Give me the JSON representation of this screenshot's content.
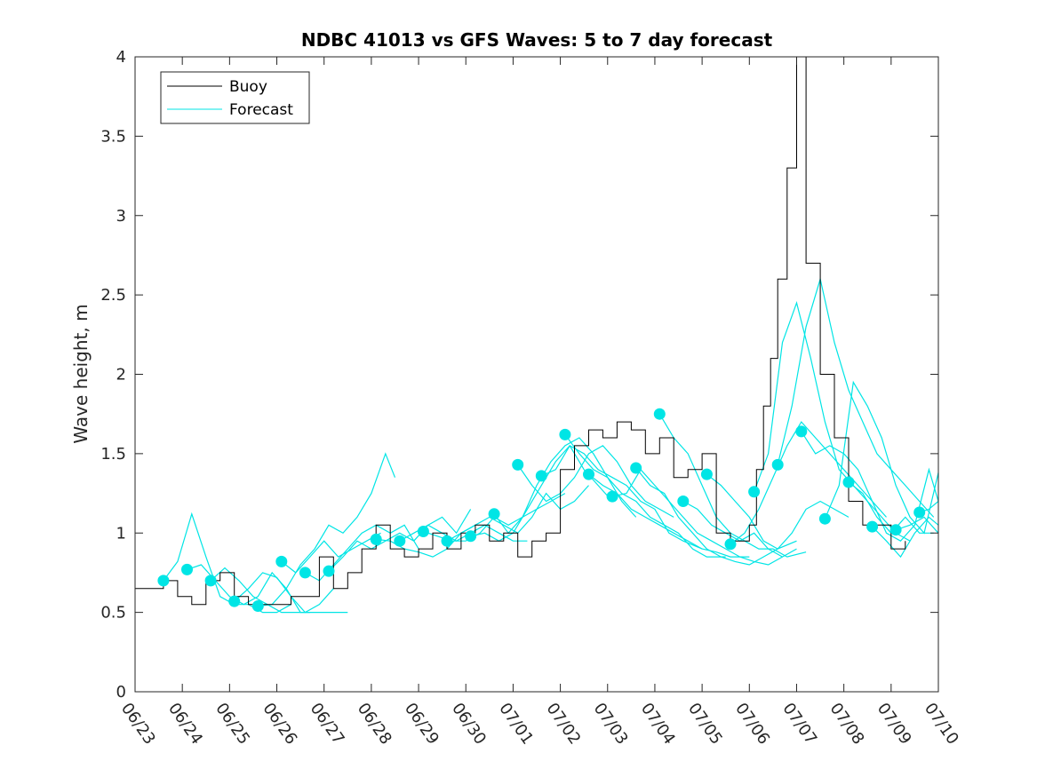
{
  "chart_data": {
    "type": "line",
    "title": "NDBC 41013 vs GFS Waves: 5 to 7 day forecast",
    "xlabel": "",
    "ylabel": "Wave height, m",
    "xlim": [
      0,
      17
    ],
    "ylim": [
      0,
      4
    ],
    "x_ticks": [
      "06/23",
      "06/24",
      "06/25",
      "06/26",
      "06/27",
      "06/28",
      "06/29",
      "06/30",
      "07/01",
      "07/02",
      "07/03",
      "07/04",
      "07/05",
      "07/06",
      "07/07",
      "07/08",
      "07/09",
      "07/10"
    ],
    "y_ticks": [
      "0",
      "0.5",
      "1",
      "1.5",
      "2",
      "2.5",
      "3",
      "3.5",
      "4"
    ],
    "legend": {
      "position": "top-left",
      "entries": [
        "Buoy",
        "Forecast"
      ]
    },
    "colors": {
      "buoy": "#000000",
      "forecast": "#00e5e5"
    },
    "buoy": {
      "name": "Buoy",
      "x": [
        0,
        0.3,
        0.6,
        0.9,
        1.2,
        1.5,
        1.8,
        2.1,
        2.4,
        2.7,
        3.0,
        3.3,
        3.6,
        3.9,
        4.2,
        4.5,
        4.8,
        5.1,
        5.4,
        5.7,
        6.0,
        6.3,
        6.6,
        6.9,
        7.2,
        7.5,
        7.8,
        8.1,
        8.4,
        8.7,
        9.0,
        9.3,
        9.6,
        9.9,
        10.2,
        10.5,
        10.8,
        11.1,
        11.4,
        11.7,
        12.0,
        12.3,
        12.6,
        12.8,
        13.0,
        13.15,
        13.3,
        13.45,
        13.6,
        13.8,
        14.0,
        14.2,
        14.5,
        14.8,
        15.1,
        15.4,
        15.7,
        16.0,
        16.3
      ],
      "y": [
        0.65,
        0.65,
        0.7,
        0.6,
        0.55,
        0.7,
        0.75,
        0.6,
        0.55,
        0.55,
        0.55,
        0.6,
        0.6,
        0.85,
        0.65,
        0.75,
        0.9,
        1.05,
        0.9,
        0.85,
        0.9,
        1.0,
        0.9,
        1.0,
        1.05,
        0.95,
        1.0,
        0.85,
        0.95,
        1.0,
        1.4,
        1.55,
        1.65,
        1.6,
        1.7,
        1.65,
        1.5,
        1.6,
        1.35,
        1.4,
        1.5,
        1.0,
        0.95,
        0.95,
        1.05,
        1.4,
        1.8,
        2.1,
        2.6,
        3.3,
        4.0,
        2.7,
        2.0,
        1.6,
        1.2,
        1.05,
        1.05,
        0.9,
        0.95
      ]
    },
    "forecast": {
      "name": "Forecast",
      "lines": [
        {
          "x": [
            0.6,
            0.9,
            1.2,
            1.5,
            1.8,
            2.1,
            2.4,
            2.7,
            3.0,
            3.3
          ],
          "y": [
            0.7,
            0.82,
            1.12,
            0.85,
            0.6,
            0.55,
            0.55,
            0.5,
            0.5,
            0.55
          ]
        },
        {
          "x": [
            1.1,
            1.4,
            1.7,
            2.0,
            2.3,
            2.6,
            2.9,
            3.2,
            3.5,
            4.0,
            4.5
          ],
          "y": [
            0.77,
            0.8,
            0.7,
            0.6,
            0.55,
            0.6,
            0.75,
            0.65,
            0.5,
            0.5,
            0.5
          ]
        },
        {
          "x": [
            1.6,
            1.9,
            2.2,
            2.5,
            2.8,
            3.1,
            3.4,
            3.7
          ],
          "y": [
            0.7,
            0.78,
            0.7,
            0.6,
            0.55,
            0.5,
            0.5,
            0.5
          ]
        },
        {
          "x": [
            2.1,
            2.4,
            2.7,
            3.0,
            3.3,
            3.6,
            3.9,
            4.2
          ],
          "y": [
            0.57,
            0.65,
            0.75,
            0.72,
            0.6,
            0.5,
            0.55,
            0.65
          ]
        },
        {
          "x": [
            2.6,
            2.9,
            3.2,
            3.5,
            3.8,
            4.1,
            4.4,
            4.7,
            5.0,
            5.3,
            5.5
          ],
          "y": [
            0.54,
            0.55,
            0.65,
            0.8,
            0.9,
            1.05,
            1.0,
            1.1,
            1.25,
            1.5,
            1.35
          ]
        },
        {
          "x": [
            3.1,
            3.4,
            3.7,
            4.0,
            4.3,
            4.6,
            4.9,
            5.2
          ],
          "y": [
            0.82,
            0.75,
            0.85,
            0.95,
            0.85,
            0.9,
            0.95,
            1.0
          ]
        },
        {
          "x": [
            3.6,
            3.9,
            4.2,
            4.5,
            4.8,
            5.1,
            5.4,
            5.7,
            6.0
          ],
          "y": [
            0.75,
            0.7,
            0.8,
            0.9,
            1.0,
            1.05,
            1.0,
            1.05,
            0.9
          ]
        },
        {
          "x": [
            4.1,
            4.4,
            4.7,
            5.0,
            5.3,
            5.6,
            5.9,
            6.2,
            6.5,
            6.8,
            7.1
          ],
          "y": [
            0.76,
            0.85,
            0.95,
            0.9,
            0.95,
            1.0,
            0.95,
            1.05,
            1.1,
            1.0,
            1.15
          ]
        },
        {
          "x": [
            5.1,
            5.4,
            5.7,
            6.0,
            6.3,
            6.6,
            6.9,
            7.2
          ],
          "y": [
            0.96,
            0.95,
            0.9,
            0.88,
            0.85,
            0.9,
            1.0,
            1.05
          ]
        },
        {
          "x": [
            5.6,
            5.9,
            6.2,
            6.5,
            6.8,
            7.1,
            7.4,
            7.7,
            8.0,
            8.3
          ],
          "y": [
            0.95,
            1.0,
            1.05,
            1.0,
            0.95,
            1.0,
            1.05,
            1.0,
            0.95,
            0.95
          ]
        },
        {
          "x": [
            6.1,
            6.4,
            6.7,
            7.0,
            7.3,
            7.6,
            7.9,
            8.2,
            8.5,
            8.8,
            9.1
          ],
          "y": [
            1.01,
            0.98,
            0.95,
            0.95,
            1.0,
            1.1,
            1.05,
            1.1,
            1.15,
            1.2,
            1.25
          ]
        },
        {
          "x": [
            6.6,
            6.9,
            7.2,
            7.5,
            7.8,
            8.1,
            8.4,
            8.7,
            9.0,
            9.3,
            9.6
          ],
          "y": [
            0.95,
            1.0,
            1.05,
            1.1,
            1.05,
            1.0,
            1.1,
            1.25,
            1.15,
            1.2,
            1.3
          ]
        },
        {
          "x": [
            7.1,
            7.4,
            7.7,
            8.0,
            8.3,
            8.6,
            8.9,
            9.2,
            9.5,
            9.8,
            10.1
          ],
          "y": [
            0.98,
            1.0,
            0.95,
            1.0,
            1.15,
            1.3,
            1.45,
            1.55,
            1.4,
            1.3,
            1.2
          ]
        },
        {
          "x": [
            7.6,
            7.9,
            8.2,
            8.5,
            8.8,
            9.1,
            9.4,
            9.7,
            10.0,
            10.3,
            10.6
          ],
          "y": [
            1.12,
            1.0,
            1.1,
            1.3,
            1.45,
            1.55,
            1.6,
            1.5,
            1.35,
            1.2,
            1.1
          ]
        },
        {
          "x": [
            8.1,
            8.4,
            8.7,
            9.0,
            9.3,
            9.6,
            9.9,
            10.2,
            10.5,
            10.8,
            11.1,
            11.4
          ],
          "y": [
            1.43,
            1.3,
            1.2,
            1.25,
            1.35,
            1.5,
            1.55,
            1.45,
            1.3,
            1.2,
            1.15,
            1.1
          ]
        },
        {
          "x": [
            8.6,
            8.9,
            9.2,
            9.5,
            9.8,
            10.1,
            10.4,
            10.7,
            11.0,
            11.3,
            11.6,
            12.0
          ],
          "y": [
            1.36,
            1.4,
            1.55,
            1.5,
            1.4,
            1.35,
            1.3,
            1.2,
            1.15,
            1.0,
            0.95,
            0.9
          ]
        },
        {
          "x": [
            9.1,
            9.4,
            9.7,
            10.0,
            10.3,
            10.6,
            10.9,
            11.2,
            11.5,
            11.8,
            12.1,
            12.5
          ],
          "y": [
            1.62,
            1.5,
            1.4,
            1.35,
            1.25,
            1.2,
            1.1,
            1.05,
            1.0,
            0.9,
            0.85,
            0.85
          ]
        },
        {
          "x": [
            9.6,
            9.9,
            10.2,
            10.5,
            10.8,
            11.1,
            11.4,
            11.7,
            12.0,
            12.3,
            12.6,
            13.0
          ],
          "y": [
            1.37,
            1.3,
            1.25,
            1.15,
            1.1,
            1.05,
            1.0,
            0.95,
            0.9,
            0.88,
            0.85,
            0.85
          ]
        },
        {
          "x": [
            10.1,
            10.4,
            10.7,
            11.0,
            11.3,
            11.6,
            11.9,
            12.2,
            12.5,
            12.8,
            13.1,
            13.4,
            13.7
          ],
          "y": [
            1.23,
            1.25,
            1.4,
            1.3,
            1.2,
            1.1,
            1.0,
            0.95,
            0.9,
            0.85,
            0.82,
            0.8,
            0.85
          ]
        },
        {
          "x": [
            10.6,
            10.9,
            11.2,
            11.5,
            11.8,
            12.1,
            12.4,
            12.7,
            13.0,
            13.3,
            13.6,
            14.0
          ],
          "y": [
            1.41,
            1.3,
            1.25,
            1.1,
            1.0,
            0.9,
            0.85,
            0.82,
            0.8,
            0.85,
            0.9,
            0.95
          ]
        },
        {
          "x": [
            11.1,
            11.4,
            11.7,
            12.0,
            12.3,
            12.6,
            12.9,
            13.2,
            13.5,
            13.8,
            14.2
          ],
          "y": [
            1.75,
            1.6,
            1.5,
            1.3,
            1.1,
            1.0,
            0.95,
            0.9,
            0.9,
            0.85,
            0.88
          ]
        },
        {
          "x": [
            11.6,
            11.9,
            12.2,
            12.5,
            12.8,
            13.1,
            13.4,
            13.7,
            14.0
          ],
          "y": [
            1.2,
            1.15,
            1.05,
            1.0,
            0.95,
            1.0,
            0.9,
            0.85,
            0.9
          ]
        },
        {
          "x": [
            12.1,
            12.4,
            12.7,
            13.0,
            13.3,
            13.6,
            13.9,
            14.2,
            14.5,
            14.8,
            15.1
          ],
          "y": [
            1.37,
            1.3,
            1.2,
            1.1,
            0.95,
            0.9,
            1.0,
            1.15,
            1.2,
            1.15,
            1.1
          ]
        },
        {
          "x": [
            12.6,
            12.9,
            13.2,
            13.5,
            13.8,
            14.1,
            14.4,
            14.7,
            15.0,
            15.3,
            15.6,
            15.9
          ],
          "y": [
            0.93,
            1.0,
            1.15,
            1.35,
            1.55,
            1.7,
            1.6,
            1.5,
            1.4,
            1.3,
            1.2,
            1.1
          ]
        },
        {
          "x": [
            13.1,
            13.4,
            13.7,
            14.0,
            14.3,
            14.6,
            14.9,
            15.2,
            15.5,
            15.8,
            16.1,
            16.4
          ],
          "y": [
            1.26,
            1.5,
            2.2,
            2.45,
            2.1,
            1.7,
            1.4,
            1.3,
            1.2,
            1.1,
            1.0,
            0.95
          ]
        },
        {
          "x": [
            13.6,
            13.9,
            14.2,
            14.5,
            14.8,
            15.1,
            15.4,
            15.7,
            16.0,
            16.3,
            16.6,
            16.9
          ],
          "y": [
            1.43,
            1.8,
            2.3,
            2.6,
            2.2,
            1.9,
            1.7,
            1.5,
            1.4,
            1.3,
            1.2,
            1.1
          ]
        },
        {
          "x": [
            14.1,
            14.4,
            14.7,
            15.0,
            15.3,
            15.6,
            15.9,
            16.2,
            16.5,
            16.8,
            17.0
          ],
          "y": [
            1.64,
            1.5,
            1.55,
            1.5,
            1.4,
            1.2,
            1.0,
            0.95,
            1.05,
            1.4,
            1.2
          ]
        },
        {
          "x": [
            14.6,
            14.9,
            15.2,
            15.5,
            15.8,
            16.1,
            16.4,
            16.7,
            17.0
          ],
          "y": [
            1.09,
            1.3,
            1.95,
            1.8,
            1.6,
            1.3,
            1.1,
            1.0,
            1.38
          ]
        },
        {
          "x": [
            15.1,
            15.4,
            15.7,
            16.0,
            16.3,
            16.6,
            16.9
          ],
          "y": [
            1.32,
            1.25,
            1.1,
            1.0,
            1.1,
            1.0,
            1.0
          ]
        },
        {
          "x": [
            15.6,
            15.9,
            16.2,
            16.5,
            16.8,
            17.0
          ],
          "y": [
            1.04,
            0.95,
            0.85,
            1.0,
            1.1,
            1.05
          ]
        },
        {
          "x": [
            16.1,
            16.4,
            16.7,
            17.0
          ],
          "y": [
            1.02,
            1.05,
            1.1,
            1.0
          ]
        },
        {
          "x": [
            16.6,
            16.8,
            17.0
          ],
          "y": [
            1.13,
            1.15,
            1.2
          ]
        }
      ],
      "markers": {
        "x": [
          0.6,
          1.1,
          1.6,
          2.1,
          2.6,
          3.1,
          3.6,
          4.1,
          5.1,
          5.6,
          6.1,
          6.6,
          7.1,
          7.6,
          8.1,
          8.6,
          9.1,
          9.6,
          10.1,
          10.6,
          11.1,
          11.6,
          12.1,
          12.6,
          13.1,
          13.6,
          14.1,
          14.6,
          15.1,
          15.6,
          16.1,
          16.6
        ],
        "y": [
          0.7,
          0.77,
          0.7,
          0.57,
          0.54,
          0.82,
          0.75,
          0.76,
          0.96,
          0.95,
          1.01,
          0.95,
          0.98,
          1.12,
          1.43,
          1.36,
          1.62,
          1.37,
          1.23,
          1.41,
          1.75,
          1.2,
          1.37,
          0.93,
          1.26,
          1.43,
          1.64,
          1.09,
          1.32,
          1.04,
          1.02,
          1.13
        ]
      }
    }
  }
}
